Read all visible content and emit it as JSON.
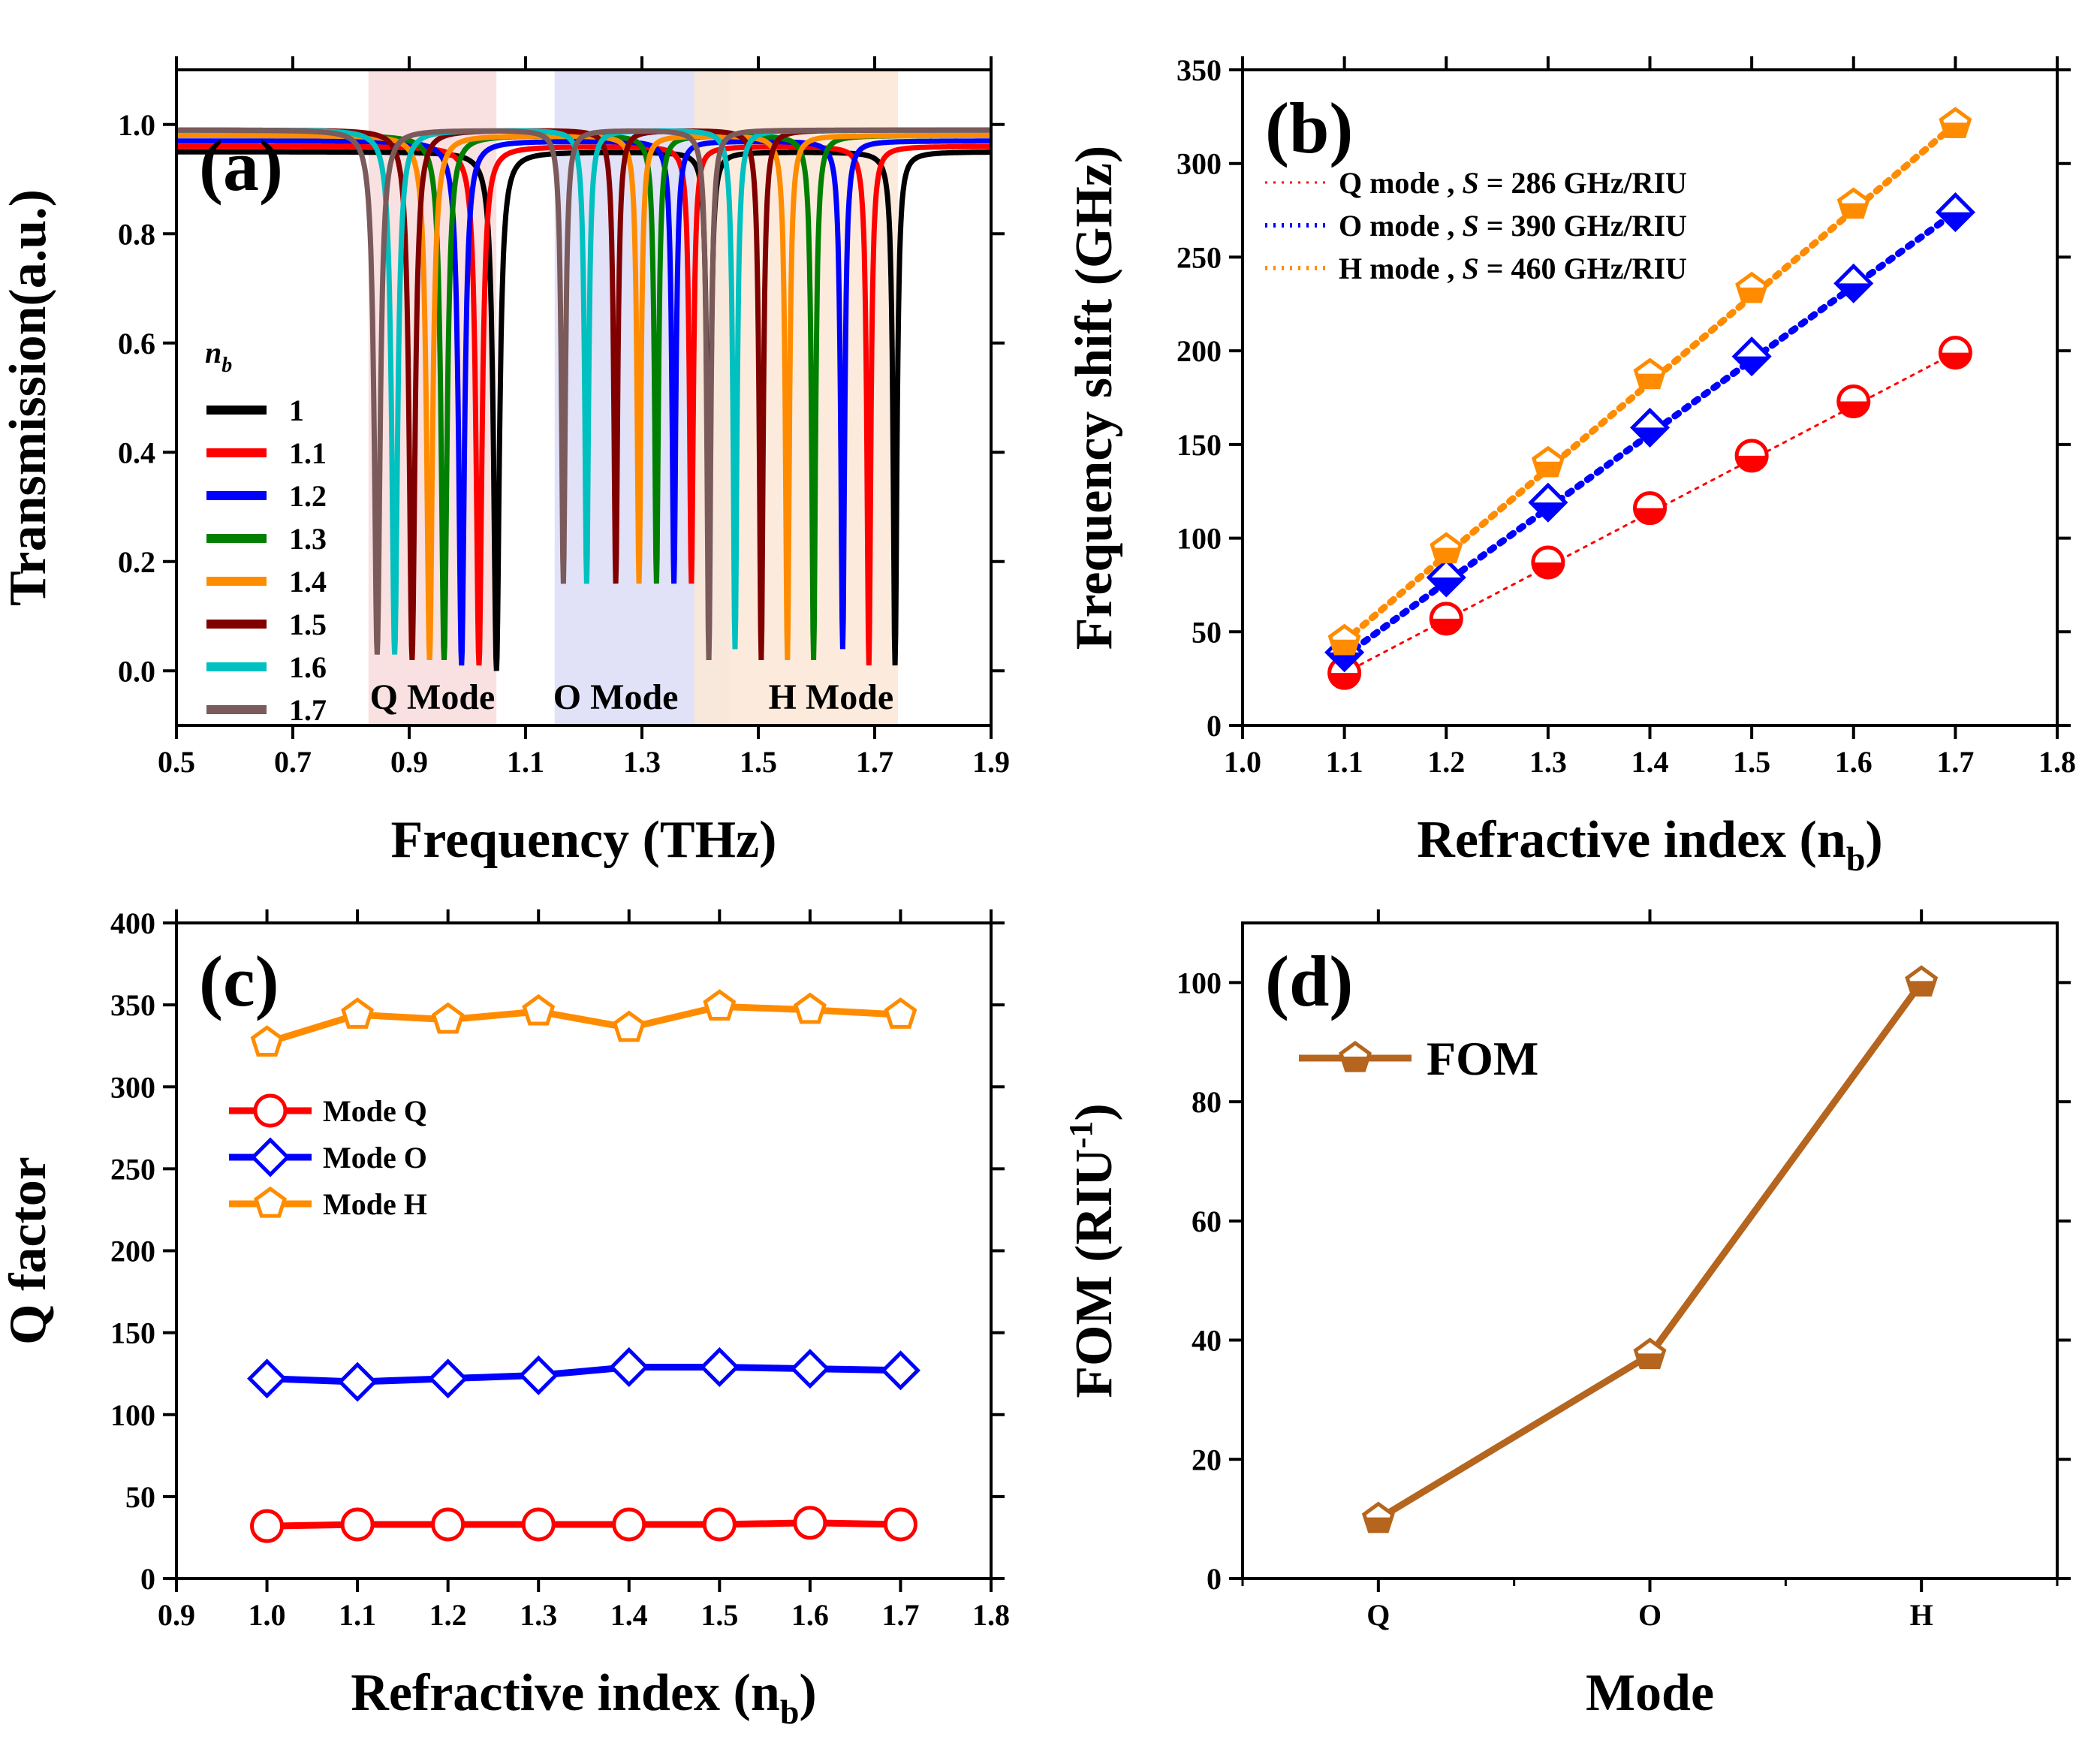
{
  "chart_data": [
    {
      "id": "a",
      "type": "line",
      "panel_label": "(a)",
      "xlabel": "Frequency (THz)",
      "ylabel": "Transmission(a.u.)",
      "xlim": [
        0.5,
        1.9
      ],
      "ylim": [
        -0.1,
        1.1
      ],
      "xticks": [
        "0.5",
        "0.7",
        "0.9",
        "1.1",
        "1.3",
        "1.5",
        "1.7",
        "1.9"
      ],
      "yticks": [
        "0.0",
        "0.2",
        "0.4",
        "0.6",
        "0.8",
        "1.0"
      ],
      "legend_title": "n_b",
      "regions": [
        {
          "label": "Q Mode",
          "x0": 0.83,
          "x1": 1.05,
          "color": "#f8dcdc"
        },
        {
          "label": "O Mode",
          "x0": 1.15,
          "x1": 1.45,
          "color": "#dcdcf6"
        },
        {
          "label": "H Mode",
          "x0": 1.39,
          "x1": 1.74,
          "color": "#fbe8d6"
        }
      ],
      "series": [
        {
          "name": "1",
          "color": "#000000",
          "baseline": 0.95,
          "dips": [
            {
              "f": 1.05,
              "depth": 0.0,
              "w": 0.006
            },
            {
              "f": 1.415,
              "depth": 0.15,
              "w": 0.004
            },
            {
              "f": 1.735,
              "depth": 0.01,
              "w": 0.004
            }
          ]
        },
        {
          "name": "1.1",
          "color": "#ff0000",
          "baseline": 0.96,
          "dips": [
            {
              "f": 1.02,
              "depth": 0.01,
              "w": 0.006
            },
            {
              "f": 1.385,
              "depth": 0.16,
              "w": 0.004
            },
            {
              "f": 1.69,
              "depth": 0.01,
              "w": 0.004
            }
          ]
        },
        {
          "name": "1.2",
          "color": "#0000ff",
          "baseline": 0.97,
          "dips": [
            {
              "f": 0.99,
              "depth": 0.01,
              "w": 0.006
            },
            {
              "f": 1.355,
              "depth": 0.16,
              "w": 0.004
            },
            {
              "f": 1.645,
              "depth": 0.04,
              "w": 0.004
            }
          ]
        },
        {
          "name": "1.3",
          "color": "#008000",
          "baseline": 0.98,
          "dips": [
            {
              "f": 0.96,
              "depth": 0.02,
              "w": 0.006
            },
            {
              "f": 1.325,
              "depth": 0.16,
              "w": 0.004
            },
            {
              "f": 1.595,
              "depth": 0.02,
              "w": 0.004
            }
          ]
        },
        {
          "name": "1.4",
          "color": "#ff8c00",
          "baseline": 0.98,
          "dips": [
            {
              "f": 0.935,
              "depth": 0.02,
              "w": 0.006
            },
            {
              "f": 1.295,
              "depth": 0.16,
              "w": 0.004
            },
            {
              "f": 1.55,
              "depth": 0.02,
              "w": 0.004
            }
          ]
        },
        {
          "name": "1.5",
          "color": "#800000",
          "baseline": 0.99,
          "dips": [
            {
              "f": 0.905,
              "depth": 0.02,
              "w": 0.006
            },
            {
              "f": 1.255,
              "depth": 0.16,
              "w": 0.004
            },
            {
              "f": 1.505,
              "depth": 0.02,
              "w": 0.004
            }
          ]
        },
        {
          "name": "1.6",
          "color": "#00c0c0",
          "baseline": 0.99,
          "dips": [
            {
              "f": 0.875,
              "depth": 0.03,
              "w": 0.006
            },
            {
              "f": 1.205,
              "depth": 0.16,
              "w": 0.004
            },
            {
              "f": 1.46,
              "depth": 0.04,
              "w": 0.004
            }
          ]
        },
        {
          "name": "1.7",
          "color": "#7a5a5a",
          "baseline": 0.99,
          "dips": [
            {
              "f": 0.845,
              "depth": 0.03,
              "w": 0.006
            },
            {
              "f": 1.165,
              "depth": 0.16,
              "w": 0.004
            },
            {
              "f": 1.415,
              "depth": 0.02,
              "w": 0.004
            }
          ]
        }
      ]
    },
    {
      "id": "b",
      "type": "scatter",
      "panel_label": "(b)",
      "xlabel": "Refractive index (n",
      "xlabel_sub": "b",
      "xlabel_end": ")",
      "ylabel": "Frequency shift (GHz)",
      "xlim": [
        1.0,
        1.8
      ],
      "ylim": [
        0,
        350
      ],
      "xticks": [
        "1.0",
        "1.1",
        "1.2",
        "1.3",
        "1.4",
        "1.5",
        "1.6",
        "1.7",
        "1.8"
      ],
      "yticks": [
        "0",
        "50",
        "100",
        "150",
        "200",
        "250",
        "300",
        "350"
      ],
      "x": [
        1.1,
        1.2,
        1.3,
        1.4,
        1.5,
        1.6,
        1.7
      ],
      "series": [
        {
          "name": "Q mode",
          "sensitivity": "S = 286 GHz/RIU",
          "sens_value": "286 GHz/RIU",
          "color": "#ff0000",
          "marker": "circle",
          "values": [
            28,
            57,
            87,
            116,
            144,
            173,
            199
          ],
          "fit": [
            28,
            199
          ]
        },
        {
          "name": "O mode",
          "sensitivity": "S = 390 GHz/RIU",
          "sens_value": "390 GHz/RIU",
          "color": "#0000ff",
          "marker": "diamond",
          "values": [
            39,
            79,
            119,
            159,
            197,
            236,
            274
          ],
          "fit": [
            37,
            274
          ]
        },
        {
          "name": "H mode",
          "sensitivity": "S = 460 GHz/RIU",
          "sens_value": "460 GHz/RIU",
          "color": "#ff8c00",
          "marker": "pentagon",
          "values": [
            45,
            94,
            140,
            187,
            233,
            278,
            321
          ],
          "fit": [
            45,
            321
          ]
        }
      ]
    },
    {
      "id": "c",
      "type": "line",
      "panel_label": "(c)",
      "xlabel": "Refractive index (n",
      "xlabel_sub": "b",
      "xlabel_end": ")",
      "ylabel": "Q factor",
      "xlim": [
        0.9,
        1.8
      ],
      "ylim": [
        0,
        400
      ],
      "xticks": [
        "0.9",
        "1.0",
        "1.1",
        "1.2",
        "1.3",
        "1.4",
        "1.5",
        "1.6",
        "1.7",
        "1.8"
      ],
      "yticks": [
        "0",
        "50",
        "100",
        "150",
        "200",
        "250",
        "300",
        "350",
        "400"
      ],
      "x": [
        1.0,
        1.1,
        1.2,
        1.3,
        1.4,
        1.5,
        1.6,
        1.7
      ],
      "series": [
        {
          "name": "Mode Q",
          "color": "#ff0000",
          "marker": "circle",
          "values": [
            32,
            33,
            33,
            33,
            33,
            33,
            34,
            33
          ]
        },
        {
          "name": "Mode O",
          "color": "#0000ff",
          "marker": "diamond",
          "values": [
            122,
            120,
            122,
            124,
            129,
            129,
            128,
            127
          ]
        },
        {
          "name": "Mode H",
          "color": "#ff8c00",
          "marker": "pentagon",
          "values": [
            327,
            344,
            341,
            346,
            336,
            349,
            347,
            344
          ]
        }
      ]
    },
    {
      "id": "d",
      "type": "line",
      "panel_label": "(d)",
      "xlabel": "Mode",
      "ylabel": "FOM (RIU",
      "ylabel_sup": "-1",
      "ylabel_end": ")",
      "ylim": [
        0,
        110
      ],
      "categories": [
        "Q",
        "O",
        "H"
      ],
      "yticks": [
        "0",
        "20",
        "40",
        "60",
        "80",
        "100"
      ],
      "series": [
        {
          "name": "FOM",
          "color": "#b5651d",
          "marker": "pentagon",
          "values": [
            10,
            37.5,
            100
          ]
        }
      ]
    }
  ]
}
